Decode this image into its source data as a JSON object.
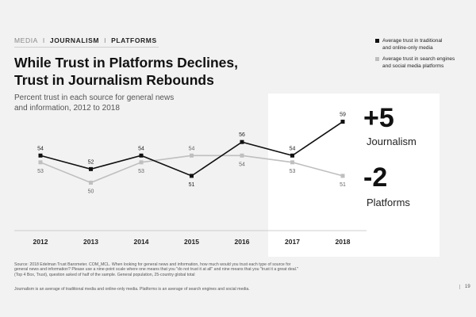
{
  "breadcrumb": {
    "section": "MEDIA",
    "item1": "JOURNALISM",
    "separator": "I",
    "item2": "PLATFORMS"
  },
  "headline": {
    "line1": "While Trust in Platforms Declines,",
    "line2": "Trust in Journalism Rebounds"
  },
  "subtitle": {
    "line1": "Percent trust in each source for general news",
    "line2": "and information, 2012 to 2018"
  },
  "legend": [
    {
      "line1": "Average trust in traditional",
      "line2": "and online-only media",
      "color": "#111111"
    },
    {
      "line1": "Average trust in search engines",
      "line2": "and social media platforms",
      "color": "#bfbfbf"
    }
  ],
  "callouts": {
    "journalism": {
      "value": "+5",
      "label": "Journalism"
    },
    "platforms": {
      "value": "-2",
      "label": "Platforms"
    }
  },
  "footnote": {
    "line1": "Source: 2018 Edelman Trust Barometer. COM_MCL. When looking for general news and information, how much would you trust each type of source for",
    "line2": "general news and information? Please use a nine-point scale where one means that you \"do not trust it at all\" and nine means that you \"trust it a great deal.\"",
    "line3": "(Top 4 Box, Trust), question asked of half of the sample. General population, 25-country global total"
  },
  "footer_note": "Journalism is an average of traditional media and online-only media. Platforms is an average of search engines and social media.",
  "page_number": "19",
  "chart_data": {
    "type": "line",
    "categories": [
      "2012",
      "2013",
      "2014",
      "2015",
      "2016",
      "2017",
      "2018"
    ],
    "series": [
      {
        "name": "Average trust in traditional and online-only media",
        "values": [
          54,
          52,
          54,
          51,
          56,
          54,
          59
        ],
        "color": "#111111"
      },
      {
        "name": "Average trust in search engines and social media platforms",
        "values": [
          53,
          50,
          53,
          54,
          54,
          53,
          51
        ],
        "color": "#bfbfbf"
      }
    ],
    "ylim": [
      49,
      60
    ],
    "grid": false
  }
}
